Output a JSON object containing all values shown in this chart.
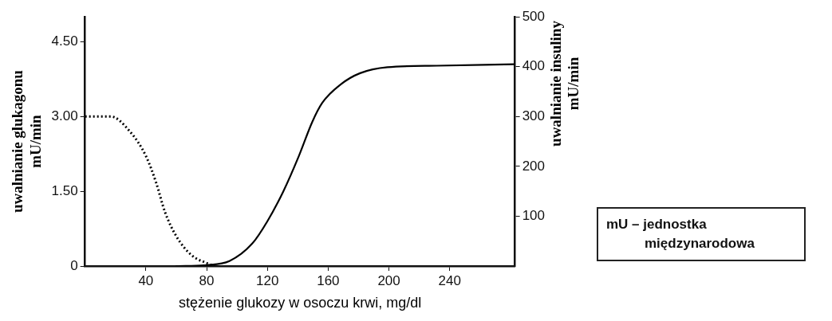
{
  "chart_data": {
    "type": "line",
    "xlabel": "stężenie glukozy w osoczu krwi, mg/dl",
    "ylabel": "uwalnianie glukagonu\nmU/min",
    "y2label": "uwalnianie insuliny\nmU/min",
    "annotations": [
      "mU – jednostka międzynarodowa"
    ],
    "xlim": [
      0,
      283
    ],
    "xticks": [
      40,
      80,
      120,
      160,
      200,
      240
    ],
    "ylim": [
      0,
      5
    ],
    "yticks": [
      0,
      {
        "value": 1.5,
        "label": "1.50"
      },
      {
        "value": 3,
        "label": "3.00"
      },
      {
        "value": 4.5,
        "label": "4.50"
      }
    ],
    "y2lim": [
      0,
      500
    ],
    "y2ticks": [
      100,
      200,
      300,
      400,
      500
    ],
    "grid": false,
    "legend": false,
    "marker": "none",
    "series": [
      {
        "color": "#000000",
        "line_style": "dotted",
        "x": [
          0,
          17,
          29.5,
          40,
          47,
          52.5,
          60,
          70,
          80,
          85
        ],
        "values": [
          3.0,
          3.0,
          2.7,
          2.21,
          1.65,
          1.09,
          0.6,
          0.22,
          0.06,
          0
        ]
      },
      {
        "color": "#000000",
        "line_style": "solid",
        "axis": "y2",
        "x": [
          60,
          80,
          95,
          110,
          120,
          130.5,
          140.6,
          149.5,
          156,
          168.5,
          181,
          199,
          231.5,
          283
        ],
        "values": [
          0,
          2,
          10,
          45,
          90,
          150,
          220,
          289,
          327,
          365,
          387,
          399,
          402,
          405
        ]
      }
    ]
  }
}
